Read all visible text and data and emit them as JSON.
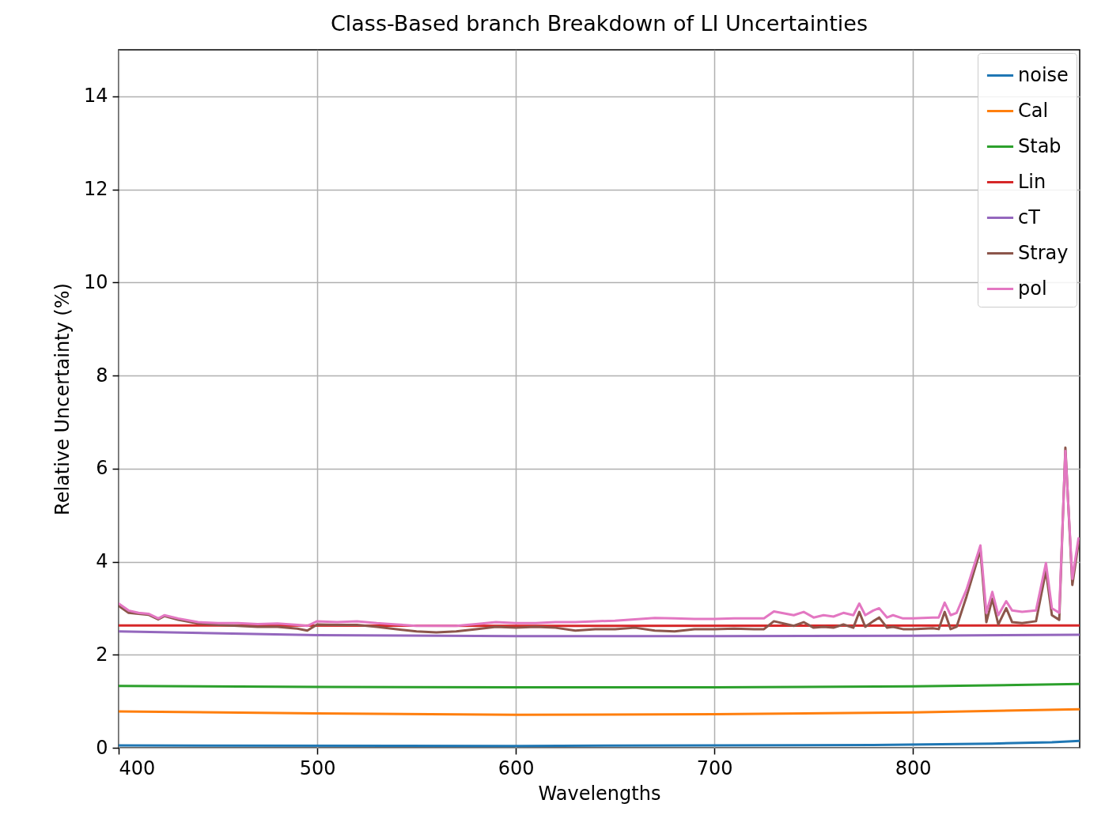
{
  "chart_data": {
    "type": "line",
    "title": "Class-Based branch Breakdown of LI Uncertainties",
    "xlabel": "Wavelengths",
    "ylabel": "Relative Uncertainty (%)",
    "xlim": [
      400,
      884
    ],
    "xticks": [
      400,
      500,
      600,
      700,
      800
    ],
    "ylim": [
      0,
      15
    ],
    "yticks": [
      0,
      2,
      4,
      6,
      8,
      10,
      12,
      14
    ],
    "grid": true,
    "legend": "top right",
    "line_style": "solid",
    "x": [
      400,
      405,
      410,
      415,
      420,
      423,
      430,
      440,
      450,
      460,
      470,
      480,
      490,
      495,
      500,
      510,
      520,
      530,
      540,
      550,
      560,
      570,
      580,
      590,
      600,
      610,
      620,
      630,
      640,
      650,
      660,
      670,
      680,
      690,
      700,
      710,
      720,
      725,
      730,
      740,
      745,
      750,
      755,
      760,
      765,
      770,
      773,
      776,
      780,
      783,
      787,
      790,
      795,
      800,
      810,
      813,
      816,
      819,
      822,
      827,
      834,
      837,
      840,
      843,
      847,
      850,
      855,
      862,
      867,
      870,
      873.7,
      876.8,
      880.3,
      883.4
    ],
    "series": [
      {
        "name": "noise",
        "color": "#1f77b4",
        "x": [
          400,
          600,
          780,
          840,
          870,
          884
        ],
        "values": [
          0.05,
          0.04,
          0.06,
          0.09,
          0.12,
          0.15
        ]
      },
      {
        "name": "Cal",
        "color": "#ff7f0e",
        "x": [
          400,
          500,
          600,
          700,
          800,
          884
        ],
        "values": [
          0.78,
          0.74,
          0.71,
          0.72,
          0.76,
          0.83
        ]
      },
      {
        "name": "Stab",
        "color": "#2ca02c",
        "x": [
          400,
          500,
          600,
          700,
          800,
          884
        ],
        "values": [
          1.33,
          1.31,
          1.3,
          1.3,
          1.32,
          1.37
        ]
      },
      {
        "name": "Lin",
        "color": "#d62728",
        "x": [
          400,
          600,
          884
        ],
        "values": [
          2.63,
          2.62,
          2.63
        ]
      },
      {
        "name": "cT",
        "color": "#9467bd",
        "x": [
          400,
          500,
          600,
          700,
          800,
          884
        ],
        "values": [
          2.5,
          2.42,
          2.4,
          2.4,
          2.41,
          2.43
        ]
      },
      {
        "name": "Stray",
        "color": "#8c564b",
        "values": [
          3.05,
          2.9,
          2.88,
          2.86,
          2.76,
          2.83,
          2.75,
          2.67,
          2.64,
          2.62,
          2.6,
          2.6,
          2.56,
          2.52,
          2.65,
          2.64,
          2.64,
          2.6,
          2.55,
          2.5,
          2.48,
          2.5,
          2.55,
          2.6,
          2.58,
          2.6,
          2.58,
          2.52,
          2.55,
          2.55,
          2.58,
          2.52,
          2.5,
          2.55,
          2.55,
          2.56,
          2.55,
          2.55,
          2.72,
          2.62,
          2.7,
          2.58,
          2.6,
          2.58,
          2.65,
          2.58,
          2.92,
          2.6,
          2.72,
          2.8,
          2.58,
          2.6,
          2.55,
          2.55,
          2.57,
          2.55,
          2.92,
          2.55,
          2.6,
          3.25,
          4.25,
          2.7,
          3.2,
          2.65,
          3.0,
          2.7,
          2.68,
          2.72,
          3.8,
          2.85,
          2.75,
          6.45,
          3.5,
          4.4
        ]
      },
      {
        "name": "pol",
        "color": "#e377c2",
        "values": [
          3.1,
          2.95,
          2.9,
          2.88,
          2.78,
          2.85,
          2.78,
          2.7,
          2.68,
          2.68,
          2.66,
          2.67,
          2.64,
          2.62,
          2.72,
          2.7,
          2.72,
          2.68,
          2.65,
          2.62,
          2.62,
          2.62,
          2.66,
          2.7,
          2.68,
          2.68,
          2.7,
          2.7,
          2.72,
          2.73,
          2.76,
          2.79,
          2.78,
          2.77,
          2.77,
          2.78,
          2.78,
          2.78,
          2.93,
          2.85,
          2.92,
          2.8,
          2.85,
          2.82,
          2.9,
          2.85,
          3.1,
          2.85,
          2.95,
          3.0,
          2.8,
          2.85,
          2.78,
          2.78,
          2.8,
          2.8,
          3.12,
          2.85,
          2.9,
          3.4,
          4.35,
          2.9,
          3.35,
          2.85,
          3.15,
          2.95,
          2.92,
          2.95,
          3.97,
          3.0,
          2.9,
          6.38,
          3.63,
          4.5
        ]
      }
    ]
  }
}
